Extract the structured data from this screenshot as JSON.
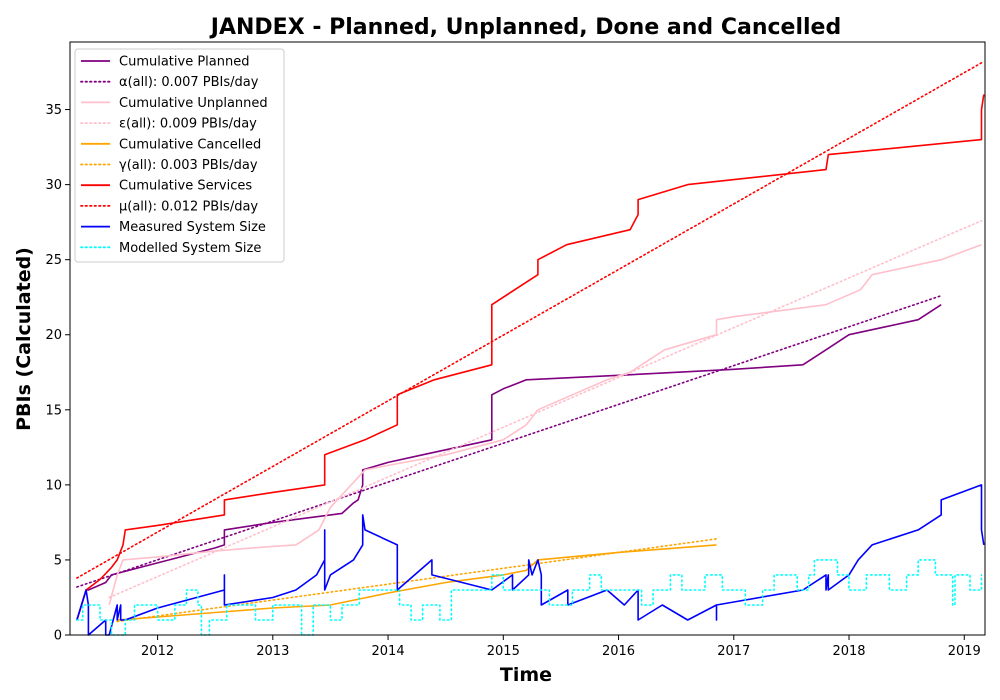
{
  "chart_data": {
    "type": "line",
    "title": "JANDEX - Planned, Unplanned, Done  and Cancelled",
    "xlabel": "Time",
    "ylabel": "PBIs (Calculated)",
    "xlim": [
      2011.24,
      2019.18
    ],
    "ylim": [
      0,
      39.5
    ],
    "xticks": [
      2012,
      2013,
      2014,
      2015,
      2016,
      2017,
      2018,
      2019
    ],
    "yticks": [
      0,
      5,
      10,
      15,
      20,
      25,
      30,
      35
    ],
    "grid": false,
    "legend_position": "upper-left",
    "series": [
      {
        "name": "Cumulative Planned",
        "color": "#800080",
        "style": "solid",
        "points": [
          [
            2011.3,
            1
          ],
          [
            2011.38,
            3
          ],
          [
            2011.4,
            3
          ],
          [
            2011.55,
            3.5
          ],
          [
            2011.6,
            4
          ],
          [
            2011.75,
            4.3
          ],
          [
            2012.0,
            4.8
          ],
          [
            2012.5,
            5.8
          ],
          [
            2012.58,
            6
          ],
          [
            2012.58,
            7
          ],
          [
            2013.0,
            7.5
          ],
          [
            2013.5,
            8
          ],
          [
            2013.6,
            8.1
          ],
          [
            2013.7,
            8.8
          ],
          [
            2013.74,
            9
          ],
          [
            2013.78,
            10
          ],
          [
            2013.78,
            11
          ],
          [
            2014.0,
            11.5
          ],
          [
            2014.3,
            12
          ],
          [
            2014.9,
            13
          ],
          [
            2014.9,
            16
          ],
          [
            2015.0,
            16.4
          ],
          [
            2015.2,
            17
          ],
          [
            2016.0,
            17.3
          ],
          [
            2016.5,
            17.5
          ],
          [
            2017.0,
            17.7
          ],
          [
            2017.6,
            18
          ],
          [
            2017.8,
            19
          ],
          [
            2018.0,
            20
          ],
          [
            2018.3,
            20.5
          ],
          [
            2018.6,
            21
          ],
          [
            2018.8,
            22
          ]
        ]
      },
      {
        "name": "α(all): 0.007 PBIs/day",
        "color": "#800080",
        "style": "dotted",
        "points": [
          [
            2011.3,
            3.2
          ],
          [
            2018.8,
            22.6
          ]
        ]
      },
      {
        "name": "Cumulative Unplanned",
        "color": "#ffc0cb",
        "style": "solid",
        "points": [
          [
            2011.58,
            2
          ],
          [
            2011.65,
            4
          ],
          [
            2011.7,
            5
          ],
          [
            2012.0,
            5.2
          ],
          [
            2012.5,
            5.6
          ],
          [
            2013.0,
            5.9
          ],
          [
            2013.2,
            6
          ],
          [
            2013.4,
            7
          ],
          [
            2013.5,
            8.5
          ],
          [
            2013.8,
            11
          ],
          [
            2014.0,
            11.3
          ],
          [
            2014.5,
            12
          ],
          [
            2015.0,
            13
          ],
          [
            2015.2,
            14
          ],
          [
            2015.3,
            15
          ],
          [
            2015.6,
            16
          ],
          [
            2015.9,
            17
          ],
          [
            2016.1,
            17.5
          ],
          [
            2016.4,
            19
          ],
          [
            2016.85,
            20
          ],
          [
            2016.85,
            21
          ],
          [
            2017.0,
            21.2
          ],
          [
            2017.8,
            22
          ],
          [
            2018.1,
            23
          ],
          [
            2018.2,
            24
          ],
          [
            2018.8,
            25
          ],
          [
            2019.15,
            26
          ]
        ]
      },
      {
        "name": "ε(all): 0.009 PBIs/day",
        "color": "#ffc0cb",
        "style": "dotted",
        "points": [
          [
            2011.58,
            2.5
          ],
          [
            2019.15,
            27.6
          ]
        ]
      },
      {
        "name": "Cumulative Cancelled",
        "color": "#ffa500",
        "style": "solid",
        "points": [
          [
            2011.65,
            1
          ],
          [
            2012.0,
            1.2
          ],
          [
            2012.5,
            1.5
          ],
          [
            2013.0,
            1.8
          ],
          [
            2013.5,
            2
          ],
          [
            2014.0,
            2.8
          ],
          [
            2014.5,
            3.5
          ],
          [
            2015.0,
            4
          ],
          [
            2015.2,
            4.3
          ],
          [
            2015.3,
            5
          ],
          [
            2016.0,
            5.5
          ],
          [
            2016.85,
            6
          ]
        ]
      },
      {
        "name": "γ(all): 0.003 PBIs/day",
        "color": "#ffa500",
        "style": "dotted",
        "points": [
          [
            2011.65,
            0.9
          ],
          [
            2016.85,
            6.4
          ]
        ]
      },
      {
        "name": "Cumulative Services",
        "color": "#ff0000",
        "style": "solid",
        "points": [
          [
            2011.3,
            1
          ],
          [
            2011.38,
            3
          ],
          [
            2011.5,
            3.7
          ],
          [
            2011.6,
            4.5
          ],
          [
            2011.65,
            5
          ],
          [
            2011.7,
            6
          ],
          [
            2011.72,
            7
          ],
          [
            2012.0,
            7.3
          ],
          [
            2012.58,
            8
          ],
          [
            2012.58,
            9
          ],
          [
            2013.0,
            9.5
          ],
          [
            2013.45,
            10
          ],
          [
            2013.45,
            12
          ],
          [
            2013.8,
            13
          ],
          [
            2014.08,
            14
          ],
          [
            2014.08,
            16
          ],
          [
            2014.4,
            17
          ],
          [
            2014.9,
            18
          ],
          [
            2014.9,
            22
          ],
          [
            2015.1,
            23
          ],
          [
            2015.3,
            24
          ],
          [
            2015.3,
            25
          ],
          [
            2015.55,
            26
          ],
          [
            2016.1,
            27
          ],
          [
            2016.17,
            28
          ],
          [
            2016.17,
            29
          ],
          [
            2016.6,
            30
          ],
          [
            2017.8,
            31
          ],
          [
            2017.82,
            32
          ],
          [
            2019.15,
            33
          ],
          [
            2019.15,
            35
          ],
          [
            2019.17,
            36
          ]
        ]
      },
      {
        "name": "μ(all): 0.012 PBIs/day",
        "color": "#ff0000",
        "style": "dotted",
        "points": [
          [
            2011.3,
            3.8
          ],
          [
            2019.17,
            38.2
          ]
        ]
      },
      {
        "name": "Measured System Size",
        "color": "#0000ff",
        "style": "solid",
        "points": [
          [
            2011.3,
            1
          ],
          [
            2011.38,
            3
          ],
          [
            2011.4,
            2
          ],
          [
            2011.4,
            0
          ],
          [
            2011.55,
            1
          ],
          [
            2011.55,
            0
          ],
          [
            2011.58,
            0
          ],
          [
            2011.65,
            2
          ],
          [
            2011.65,
            1
          ],
          [
            2011.68,
            2
          ],
          [
            2011.68,
            1
          ],
          [
            2011.72,
            1
          ],
          [
            2012.0,
            1.8
          ],
          [
            2012.58,
            3
          ],
          [
            2012.58,
            4
          ],
          [
            2012.58,
            2
          ],
          [
            2013.0,
            2.5
          ],
          [
            2013.2,
            3
          ],
          [
            2013.38,
            4
          ],
          [
            2013.45,
            5
          ],
          [
            2013.45,
            7
          ],
          [
            2013.45,
            3
          ],
          [
            2013.5,
            4
          ],
          [
            2013.7,
            5
          ],
          [
            2013.78,
            6
          ],
          [
            2013.78,
            8
          ],
          [
            2013.8,
            7
          ],
          [
            2014.08,
            6
          ],
          [
            2014.08,
            3
          ],
          [
            2014.38,
            5
          ],
          [
            2014.38,
            4
          ],
          [
            2014.9,
            3
          ],
          [
            2015.08,
            4
          ],
          [
            2015.08,
            3
          ],
          [
            2015.22,
            4
          ],
          [
            2015.22,
            5
          ],
          [
            2015.25,
            4
          ],
          [
            2015.3,
            5
          ],
          [
            2015.33,
            4
          ],
          [
            2015.33,
            2
          ],
          [
            2015.56,
            3
          ],
          [
            2015.56,
            2
          ],
          [
            2015.9,
            3
          ],
          [
            2016.05,
            2
          ],
          [
            2016.17,
            3
          ],
          [
            2016.17,
            1
          ],
          [
            2016.38,
            2
          ],
          [
            2016.6,
            1
          ],
          [
            2016.85,
            2
          ],
          [
            2016.85,
            1
          ],
          [
            2016.85,
            2
          ],
          [
            2017.0,
            2.2
          ],
          [
            2017.6,
            3
          ],
          [
            2017.8,
            4
          ],
          [
            2017.8,
            3
          ],
          [
            2017.82,
            4
          ],
          [
            2017.82,
            3
          ],
          [
            2018.0,
            4
          ],
          [
            2018.08,
            5
          ],
          [
            2018.2,
            6
          ],
          [
            2018.6,
            7
          ],
          [
            2018.8,
            8
          ],
          [
            2018.8,
            9
          ],
          [
            2019.15,
            10
          ],
          [
            2019.15,
            9
          ],
          [
            2019.15,
            7
          ],
          [
            2019.17,
            6
          ]
        ]
      },
      {
        "name": "Modelled System Size",
        "color": "#00ffff",
        "style": "dotted",
        "points": [
          [
            2011.3,
            1
          ],
          [
            2011.35,
            1
          ],
          [
            2011.35,
            2
          ],
          [
            2011.5,
            2
          ],
          [
            2011.5,
            1
          ],
          [
            2011.6,
            1
          ],
          [
            2011.6,
            0
          ],
          [
            2011.72,
            0
          ],
          [
            2011.72,
            1
          ],
          [
            2011.8,
            1
          ],
          [
            2011.8,
            2
          ],
          [
            2012.0,
            2
          ],
          [
            2012.0,
            1
          ],
          [
            2012.15,
            1
          ],
          [
            2012.15,
            2
          ],
          [
            2012.25,
            2
          ],
          [
            2012.25,
            3
          ],
          [
            2012.35,
            3
          ],
          [
            2012.35,
            2
          ],
          [
            2012.38,
            2
          ],
          [
            2012.38,
            0
          ],
          [
            2012.45,
            0
          ],
          [
            2012.45,
            1
          ],
          [
            2012.6,
            1
          ],
          [
            2012.6,
            2
          ],
          [
            2012.85,
            2
          ],
          [
            2012.85,
            1
          ],
          [
            2013.0,
            1
          ],
          [
            2013.0,
            2
          ],
          [
            2013.25,
            2
          ],
          [
            2013.25,
            0
          ],
          [
            2013.35,
            0
          ],
          [
            2013.35,
            2
          ],
          [
            2013.5,
            2
          ],
          [
            2013.5,
            1
          ],
          [
            2013.6,
            1
          ],
          [
            2013.6,
            2
          ],
          [
            2013.75,
            2
          ],
          [
            2013.75,
            3
          ],
          [
            2014.1,
            3
          ],
          [
            2014.1,
            2
          ],
          [
            2014.2,
            2
          ],
          [
            2014.2,
            1
          ],
          [
            2014.3,
            1
          ],
          [
            2014.3,
            2
          ],
          [
            2014.45,
            2
          ],
          [
            2014.45,
            1
          ],
          [
            2014.55,
            1
          ],
          [
            2014.55,
            3
          ],
          [
            2014.9,
            3
          ],
          [
            2014.9,
            4
          ],
          [
            2015.0,
            4
          ],
          [
            2015.0,
            3
          ],
          [
            2015.4,
            3
          ],
          [
            2015.4,
            2
          ],
          [
            2015.6,
            2
          ],
          [
            2015.6,
            3
          ],
          [
            2015.75,
            3
          ],
          [
            2015.75,
            4
          ],
          [
            2015.85,
            4
          ],
          [
            2015.85,
            3
          ],
          [
            2016.2,
            3
          ],
          [
            2016.2,
            2
          ],
          [
            2016.3,
            2
          ],
          [
            2016.3,
            3
          ],
          [
            2016.45,
            3
          ],
          [
            2016.45,
            4
          ],
          [
            2016.55,
            4
          ],
          [
            2016.55,
            3
          ],
          [
            2016.75,
            3
          ],
          [
            2016.75,
            4
          ],
          [
            2016.9,
            4
          ],
          [
            2016.9,
            3
          ],
          [
            2017.1,
            3
          ],
          [
            2017.1,
            2
          ],
          [
            2017.25,
            2
          ],
          [
            2017.25,
            3
          ],
          [
            2017.35,
            3
          ],
          [
            2017.35,
            4
          ],
          [
            2017.55,
            4
          ],
          [
            2017.55,
            3
          ],
          [
            2017.65,
            3
          ],
          [
            2017.65,
            4
          ],
          [
            2017.7,
            4
          ],
          [
            2017.7,
            5
          ],
          [
            2017.9,
            5
          ],
          [
            2017.9,
            4
          ],
          [
            2018.0,
            4
          ],
          [
            2018.0,
            3
          ],
          [
            2018.15,
            3
          ],
          [
            2018.15,
            4
          ],
          [
            2018.35,
            4
          ],
          [
            2018.35,
            3
          ],
          [
            2018.5,
            3
          ],
          [
            2018.5,
            4
          ],
          [
            2018.6,
            4
          ],
          [
            2018.6,
            5
          ],
          [
            2018.75,
            5
          ],
          [
            2018.75,
            4
          ],
          [
            2018.9,
            4
          ],
          [
            2018.9,
            2
          ],
          [
            2018.92,
            2
          ],
          [
            2018.92,
            4
          ],
          [
            2019.05,
            4
          ],
          [
            2019.05,
            3
          ],
          [
            2019.15,
            3
          ],
          [
            2019.15,
            4
          ]
        ]
      }
    ]
  }
}
